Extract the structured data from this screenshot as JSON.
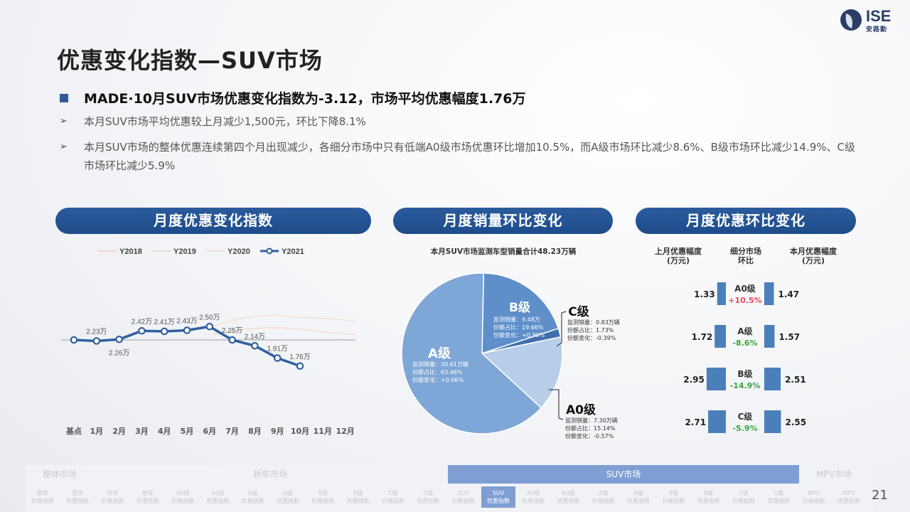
{
  "logo": {
    "text": "ISE",
    "sub": "安路勤"
  },
  "page_title": "优惠变化指数—SUV市场",
  "headline": "MADE·10月SUV市场优惠变化指数为-3.12，市场平均优惠幅度1.76万",
  "bullets": [
    "本月SUV市场平均优惠较上月减少1,500元，环比下降8.1%",
    "本月SUV市场的整体优惠连续第四个月出现减少，各细分市场中只有低端A0级市场优惠环比增加10.5%，而A级市场环比减少8.6%、B级市场环比减少14.9%、C级市场环比减少5.9%"
  ],
  "bullet_arrow": "➢",
  "panels": {
    "left": "月度优惠变化指数",
    "middle": "月度销量环比变化",
    "right": "月度优惠环比变化"
  },
  "chart_data": [
    {
      "type": "line",
      "categories": [
        "基点",
        "1月",
        "2月",
        "3月",
        "4月",
        "5月",
        "6月",
        "7月",
        "8月",
        "9月",
        "10月",
        "11月",
        "12月"
      ],
      "series": [
        {
          "name": "Y2018",
          "values": [
            null,
            null,
            null,
            null,
            null,
            null,
            null,
            null,
            null,
            null,
            null,
            null,
            null
          ]
        },
        {
          "name": "Y2019",
          "values": [
            null,
            null,
            null,
            null,
            null,
            null,
            null,
            null,
            null,
            null,
            null,
            null,
            null
          ]
        },
        {
          "name": "Y2020",
          "values": [
            null,
            null,
            null,
            null,
            null,
            null,
            null,
            null,
            null,
            null,
            null,
            null,
            null
          ]
        },
        {
          "name": "Y2021",
          "values": [
            2.25,
            2.23,
            2.26,
            2.42,
            2.41,
            2.43,
            2.5,
            2.25,
            2.14,
            1.91,
            1.76,
            null,
            null
          ],
          "labels": [
            "",
            "2.23万",
            "2.26万",
            "2.42万",
            "2.41万",
            "2.43万",
            "2.50万",
            "2.25万",
            "2.14万",
            "1.91万",
            "1.76万",
            "",
            ""
          ]
        }
      ],
      "legend_position": "top",
      "series_colors": {
        "Y2018": "#f2c9c2",
        "Y2019": "#f0d0c8",
        "Y2020": "#e8ddc6",
        "Y2021": "#2f5f9e"
      }
    },
    {
      "type": "pie",
      "title": "本月SUV市场监测车型销量合计48.23万辆",
      "slices": [
        {
          "name": "A级",
          "value": 63.46,
          "color": "#7ea6d6",
          "lines": [
            "监测销量：30.61万辆",
            "份额占比：63.46%",
            "份额变化：+0.06%"
          ]
        },
        {
          "name": "B级",
          "value": 19.66,
          "color": "#5e8fca",
          "lines": [
            "监测销量：9.48万",
            "份额占比：19.66%",
            "份额变化：+0.90%"
          ]
        },
        {
          "name": "C级",
          "value": 1.73,
          "color": "#3f6fac",
          "lines": [
            "监测销量：0.83万辆",
            "份额占比：1.73%",
            "份额变化：-0.39%"
          ]
        },
        {
          "name": "A0级",
          "value": 15.14,
          "color": "#b8cde8",
          "lines": [
            "监测销量：7.30万辆",
            "份额占比：15.14%",
            "份额变化：-0.57%"
          ]
        }
      ]
    },
    {
      "type": "bar",
      "headers": {
        "left": "上月优惠幅度\n(万元)",
        "middle": "细分市场\n环比",
        "right": "本月优惠幅度\n(万元)"
      },
      "rows": [
        {
          "segment": "A0级",
          "prev": 1.33,
          "curr": 1.47,
          "change": "+10.5%",
          "change_color": "#e24b5a"
        },
        {
          "segment": "A级",
          "prev": 1.72,
          "curr": 1.57,
          "change": "-8.6%",
          "change_color": "#3ea53e"
        },
        {
          "segment": "B级",
          "prev": 2.95,
          "curr": 2.51,
          "change": "-14.9%",
          "change_color": "#3ea53e"
        },
        {
          "segment": "C级",
          "prev": 2.71,
          "curr": 2.55,
          "change": "-5.9%",
          "change_color": "#3ea53e"
        }
      ],
      "prev_labels": [
        "1.33",
        "1.72",
        "2.95",
        "2.71"
      ],
      "curr_labels": [
        "1.47",
        "1.57",
        "2.51",
        "2.55"
      ],
      "bar_color": "#4a7fba"
    }
  ],
  "nav": {
    "categories": [
      {
        "label": "整体市场",
        "active": false
      },
      {
        "label": "轿车市场",
        "active": false
      },
      {
        "label": "SUV市场",
        "active": true
      },
      {
        "label": "MPV市场",
        "active": false
      }
    ],
    "items": [
      {
        "l1": "整体",
        "l2": "价格指数",
        "active": false
      },
      {
        "l1": "整体",
        "l2": "优惠指数",
        "active": false
      },
      {
        "l1": "轿车",
        "l2": "价格指数",
        "active": false
      },
      {
        "l1": "轿车",
        "l2": "优惠指数",
        "active": false
      },
      {
        "l1": "A0级",
        "l2": "价格指数",
        "active": false
      },
      {
        "l1": "A0级",
        "l2": "优惠指数",
        "active": false
      },
      {
        "l1": "A级",
        "l2": "价格指数",
        "active": false
      },
      {
        "l1": "A级",
        "l2": "优惠指数",
        "active": false
      },
      {
        "l1": "B级",
        "l2": "价格指数",
        "active": false
      },
      {
        "l1": "B级",
        "l2": "优惠指数",
        "active": false
      },
      {
        "l1": "C级",
        "l2": "价格指数",
        "active": false
      },
      {
        "l1": "C级",
        "l2": "优惠指数",
        "active": false
      },
      {
        "l1": "SUV",
        "l2": "价格指数",
        "active": false
      },
      {
        "l1": "SUV",
        "l2": "优惠指数",
        "active": true
      },
      {
        "l1": "A0级",
        "l2": "价格指数",
        "active": false
      },
      {
        "l1": "A0级",
        "l2": "优惠指数",
        "active": false
      },
      {
        "l1": "A级",
        "l2": "价格指数",
        "active": false
      },
      {
        "l1": "A级",
        "l2": "优惠指数",
        "active": false
      },
      {
        "l1": "B级",
        "l2": "价格指数",
        "active": false
      },
      {
        "l1": "B级",
        "l2": "优惠指数",
        "active": false
      },
      {
        "l1": "C级",
        "l2": "价格指数",
        "active": false
      },
      {
        "l1": "C级",
        "l2": "优惠指数",
        "active": false
      },
      {
        "l1": "MPV",
        "l2": "价格指数",
        "active": false
      },
      {
        "l1": "MPV",
        "l2": "优惠指数",
        "active": false
      }
    ]
  },
  "page_number": "21"
}
